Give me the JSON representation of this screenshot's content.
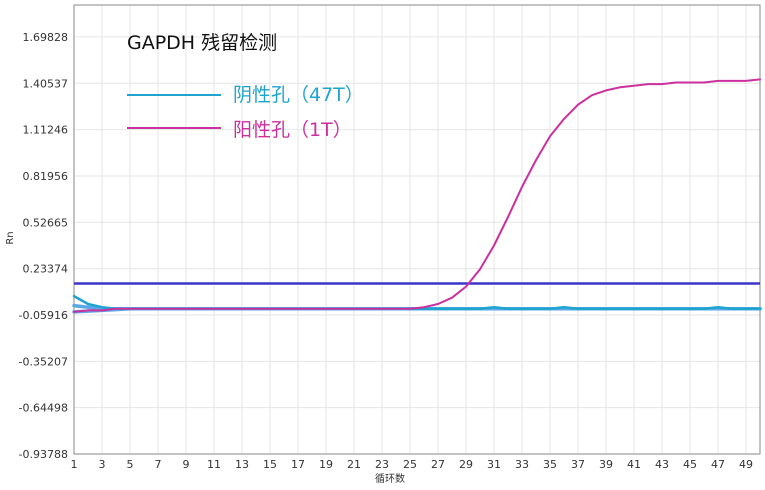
{
  "chart_data": {
    "type": "line",
    "title": "GAPDH 残留检测",
    "xlabel": "循环数",
    "ylabel": "Rn",
    "xlim": [
      1,
      50
    ],
    "ylim": [
      -0.93788,
      1.9
    ],
    "x_ticks": [
      1,
      3,
      5,
      7,
      9,
      11,
      13,
      15,
      17,
      19,
      21,
      23,
      25,
      27,
      29,
      31,
      33,
      35,
      37,
      39,
      41,
      43,
      45,
      47,
      49
    ],
    "y_ticks": [
      -0.93788,
      -0.64498,
      -0.35207,
      -0.05916,
      0.23374,
      0.52665,
      0.81956,
      1.11246,
      1.40537,
      1.69828
    ],
    "y_tick_labels": [
      "-0.93788",
      "-0.64498",
      "-0.35207",
      "-0.05916",
      "0.23374",
      "0.52665",
      "0.81956",
      "1.11246",
      "1.40537",
      "1.69828"
    ],
    "grid": true,
    "legend_position": "top-left",
    "threshold": {
      "value": 0.14,
      "color": "#3a35c8"
    },
    "series": [
      {
        "name": "阴性孔（47T）",
        "color": "#1fa3cf",
        "x": [
          1,
          2,
          3,
          4,
          5,
          6,
          7,
          8,
          9,
          10,
          11,
          12,
          13,
          14,
          15,
          16,
          17,
          18,
          19,
          20,
          21,
          22,
          23,
          24,
          25,
          26,
          27,
          28,
          29,
          30,
          31,
          32,
          33,
          34,
          35,
          36,
          37,
          38,
          39,
          40,
          41,
          42,
          43,
          44,
          45,
          46,
          47,
          48,
          49,
          50
        ],
        "y": [
          0.06,
          0.01,
          -0.01,
          -0.02,
          -0.02,
          -0.02,
          -0.02,
          -0.02,
          -0.02,
          -0.02,
          -0.02,
          -0.02,
          -0.02,
          -0.02,
          -0.02,
          -0.02,
          -0.02,
          -0.02,
          -0.02,
          -0.02,
          -0.02,
          -0.02,
          -0.02,
          -0.02,
          -0.02,
          -0.02,
          -0.02,
          -0.02,
          -0.02,
          -0.02,
          -0.01,
          -0.02,
          -0.02,
          -0.02,
          -0.02,
          -0.01,
          -0.02,
          -0.02,
          -0.02,
          -0.02,
          -0.02,
          -0.02,
          -0.02,
          -0.02,
          -0.02,
          -0.02,
          -0.01,
          -0.02,
          -0.02,
          -0.02
        ]
      },
      {
        "name": "阳性孔（1T）",
        "color": "#cc2f9e",
        "x": [
          1,
          2,
          3,
          4,
          5,
          6,
          7,
          8,
          9,
          10,
          11,
          12,
          13,
          14,
          15,
          16,
          17,
          18,
          19,
          20,
          21,
          22,
          23,
          24,
          25,
          26,
          27,
          28,
          29,
          30,
          31,
          32,
          33,
          34,
          35,
          36,
          37,
          38,
          39,
          40,
          41,
          42,
          43,
          44,
          45,
          46,
          47,
          48,
          49,
          50
        ],
        "y": [
          -0.04,
          -0.03,
          -0.03,
          -0.02,
          -0.02,
          -0.02,
          -0.02,
          -0.02,
          -0.02,
          -0.02,
          -0.02,
          -0.02,
          -0.02,
          -0.02,
          -0.02,
          -0.02,
          -0.02,
          -0.02,
          -0.02,
          -0.02,
          -0.02,
          -0.02,
          -0.02,
          -0.02,
          -0.02,
          -0.01,
          0.01,
          0.05,
          0.12,
          0.23,
          0.38,
          0.56,
          0.75,
          0.92,
          1.07,
          1.18,
          1.27,
          1.33,
          1.36,
          1.38,
          1.39,
          1.4,
          1.4,
          1.41,
          1.41,
          1.41,
          1.42,
          1.42,
          1.42,
          1.43
        ]
      },
      {
        "name": "",
        "color": "#5aa9e6",
        "x": [
          1,
          2,
          3,
          4,
          5,
          6,
          7,
          8,
          9,
          10,
          11,
          12,
          13,
          14,
          15,
          16,
          17,
          18,
          19,
          20,
          21,
          22,
          23,
          24,
          25,
          26,
          27,
          28,
          29,
          30,
          31,
          32,
          33,
          34,
          35,
          36,
          37,
          38,
          39,
          40,
          41,
          42,
          43,
          44,
          45,
          46,
          47,
          48,
          49,
          50
        ],
        "y": [
          0.0,
          -0.01,
          -0.02,
          -0.02,
          -0.02,
          -0.02,
          -0.02,
          -0.02,
          -0.02,
          -0.02,
          -0.02,
          -0.02,
          -0.02,
          -0.02,
          -0.02,
          -0.02,
          -0.02,
          -0.02,
          -0.02,
          -0.02,
          -0.02,
          -0.02,
          -0.02,
          -0.02,
          -0.02,
          -0.02,
          -0.02,
          -0.02,
          -0.02,
          -0.02,
          -0.02,
          -0.02,
          -0.02,
          -0.02,
          -0.02,
          -0.02,
          -0.02,
          -0.02,
          -0.02,
          -0.02,
          -0.02,
          -0.02,
          -0.02,
          -0.02,
          -0.02,
          -0.02,
          -0.02,
          -0.02,
          -0.02,
          -0.02
        ]
      },
      {
        "name": "",
        "color": "#5aa9e6",
        "x": [
          1,
          2,
          3,
          4,
          5,
          6,
          7,
          8,
          9,
          10,
          11,
          12,
          13,
          14,
          15,
          16,
          17,
          18,
          19,
          20,
          21,
          22,
          23,
          24,
          25,
          26,
          27,
          28,
          29,
          30,
          31,
          32,
          33,
          34,
          35,
          36,
          37,
          38,
          39,
          40,
          41,
          42,
          43,
          44,
          45,
          46,
          47,
          48,
          49,
          50
        ],
        "y": [
          -0.04,
          -0.035,
          -0.03,
          -0.025,
          -0.02,
          -0.02,
          -0.02,
          -0.02,
          -0.02,
          -0.02,
          -0.02,
          -0.02,
          -0.02,
          -0.02,
          -0.02,
          -0.02,
          -0.02,
          -0.02,
          -0.02,
          -0.02,
          -0.02,
          -0.02,
          -0.02,
          -0.02,
          -0.02,
          -0.02,
          -0.02,
          -0.02,
          -0.02,
          -0.02,
          -0.02,
          -0.02,
          -0.02,
          -0.02,
          -0.02,
          -0.02,
          -0.02,
          -0.02,
          -0.02,
          -0.02,
          -0.02,
          -0.02,
          -0.02,
          -0.02,
          -0.02,
          -0.02,
          -0.02,
          -0.02,
          -0.02,
          -0.02
        ]
      }
    ]
  }
}
